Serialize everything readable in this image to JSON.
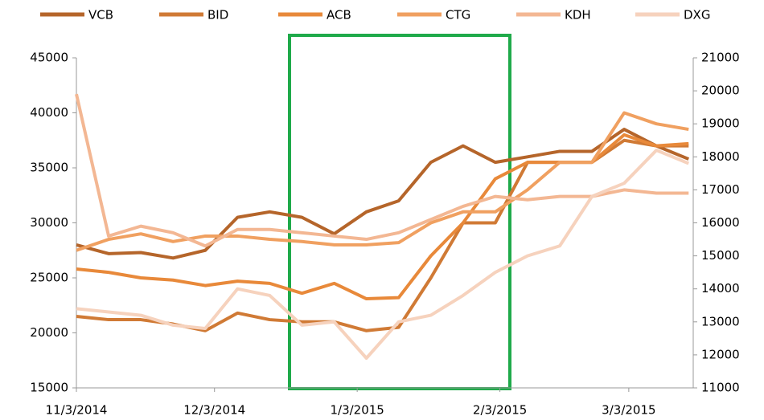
{
  "chart_data": {
    "type": "line",
    "x": [
      "2014-11-03",
      "2014-11-10",
      "2014-11-17",
      "2014-11-24",
      "2014-12-01",
      "2014-12-08",
      "2014-12-15",
      "2014-12-22",
      "2014-12-29",
      "2015-01-05",
      "2015-01-12",
      "2015-01-19",
      "2015-01-26",
      "2015-02-02",
      "2015-02-09",
      "2015-02-16",
      "2015-02-23",
      "2015-03-02",
      "2015-03-09",
      "2015-03-16"
    ],
    "series": [
      {
        "name": "VCB",
        "color": "#b5652a",
        "values": [
          28000,
          27200,
          27300,
          26800,
          27500,
          30500,
          31000,
          30500,
          29000,
          31000,
          32000,
          35500,
          37000,
          35500,
          36000,
          36500,
          36500,
          38500,
          37000,
          35800
        ]
      },
      {
        "name": "BID",
        "color": "#d07a35",
        "values": [
          21500,
          21200,
          21200,
          20800,
          20200,
          21800,
          21200,
          21000,
          21000,
          20200,
          20500,
          25000,
          30000,
          30000,
          35500,
          35500,
          35500,
          37500,
          37000,
          37000
        ]
      },
      {
        "name": "ACB",
        "color": "#e8893a",
        "values": [
          25800,
          25500,
          25000,
          24800,
          24300,
          24700,
          24500,
          23600,
          24500,
          23100,
          23200,
          27000,
          30000,
          34000,
          35500,
          35500,
          35500,
          38000,
          37000,
          37200
        ]
      },
      {
        "name": "CTG",
        "color": "#f0a060",
        "values": [
          27500,
          28500,
          29000,
          28300,
          28800,
          28800,
          28500,
          28300,
          28000,
          28000,
          28200,
          30000,
          31000,
          31000,
          33000,
          35500,
          35500,
          40000,
          39000,
          38500
        ]
      },
      {
        "name": "KDH",
        "color": "#f3b793",
        "axis": "y2",
        "values": [
          19900,
          15600,
          15900,
          15700,
          15300,
          15800,
          15800,
          15700,
          15600,
          15500,
          15700,
          16100,
          16500,
          16800,
          16700,
          16800,
          16800,
          17000,
          16900,
          16900
        ]
      },
      {
        "name": "DXG",
        "color": "#f6d2bd",
        "axis": "y2",
        "values": [
          13400,
          13300,
          13200,
          12900,
          12800,
          14000,
          13800,
          12900,
          13000,
          11900,
          13000,
          13200,
          13800,
          14500,
          15000,
          15300,
          16800,
          17200,
          18200,
          17800
        ]
      }
    ],
    "xlim": [
      "2014-11-03",
      "2015-03-17"
    ],
    "xticks": [
      {
        "value": "2014-11-03",
        "label": "11/3/2014"
      },
      {
        "value": "2014-12-03",
        "label": "12/3/2014"
      },
      {
        "value": "2015-01-03",
        "label": "1/3/2015"
      },
      {
        "value": "2015-02-03",
        "label": "2/3/2015"
      },
      {
        "value": "2015-03-03",
        "label": "3/3/2015"
      }
    ],
    "ylim": [
      15000,
      45000
    ],
    "yticks": [
      15000,
      20000,
      25000,
      30000,
      35000,
      40000,
      45000
    ],
    "y2lim": [
      11000,
      21000
    ],
    "y2ticks": [
      11000,
      12000,
      13000,
      14000,
      15000,
      16000,
      17000,
      18000,
      19000,
      20000,
      21000
    ],
    "legend": "top"
  }
}
